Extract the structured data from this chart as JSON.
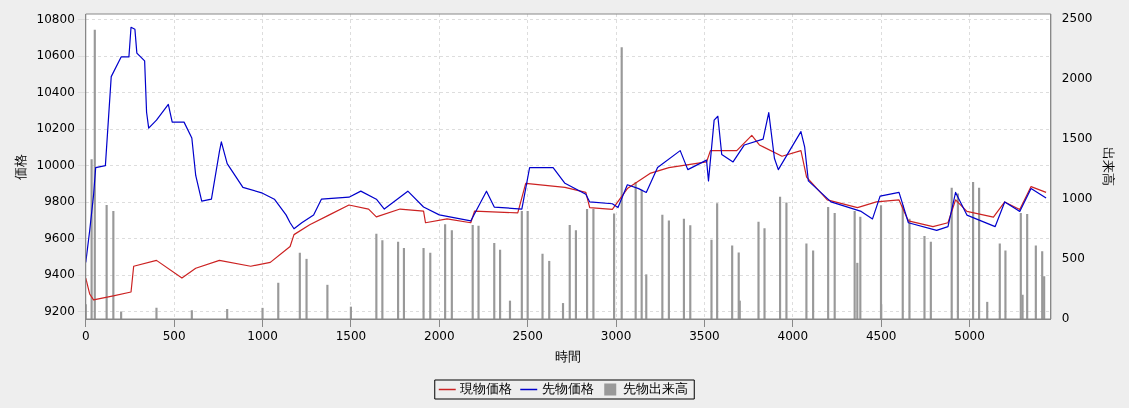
{
  "chart_data": {
    "type": "line",
    "xlabel": "時間",
    "ylabel": "価格",
    "y2label": "出来高",
    "xlim": [
      0,
      5460
    ],
    "xticks": [
      0,
      500,
      1000,
      1500,
      2000,
      2500,
      3000,
      3500,
      4000,
      4500,
      5000
    ],
    "ylim": [
      9160,
      10830
    ],
    "yticks": [
      9200,
      9400,
      9600,
      9800,
      10000,
      10200,
      10400,
      10600,
      10800
    ],
    "y2lim": [
      0,
      2540
    ],
    "y2ticks": [
      0,
      500,
      1000,
      1500,
      2000,
      2500
    ],
    "grid": true,
    "legend": "bottom",
    "series": [
      {
        "name": "現物価格",
        "color": "#cc2222",
        "x": [
          0,
          22,
          44,
          156,
          256,
          271,
          400,
          544,
          622,
          756,
          933,
          1044,
          1156,
          1178,
          1267,
          1378,
          1489,
          1600,
          1644,
          1778,
          1911,
          1922,
          2044,
          2178,
          2200,
          2444,
          2489,
          2711,
          2829,
          2851,
          2979,
          3064,
          3192,
          3299,
          3512,
          3534,
          3683,
          3768,
          3811,
          3939,
          4046,
          4078,
          4195,
          4366,
          4473,
          4601,
          4654,
          4793,
          4878,
          4921,
          4985,
          5135,
          5199,
          5284,
          5348,
          5433
        ],
        "values": [
          9384,
          9297,
          9265,
          9287,
          9308,
          9449,
          9481,
          9384,
          9438,
          9481,
          9449,
          9470,
          9557,
          9622,
          9676,
          9730,
          9784,
          9762,
          9719,
          9762,
          9751,
          9687,
          9708,
          9687,
          9751,
          9741,
          9903,
          9881,
          9853,
          9770,
          9760,
          9874,
          9957,
          9989,
          10020,
          10082,
          10082,
          10165,
          10113,
          10051,
          10082,
          9937,
          9812,
          9770,
          9801,
          9812,
          9697,
          9666,
          9687,
          9812,
          9749,
          9718,
          9801,
          9760,
          9885,
          9853
        ]
      },
      {
        "name": "先物価格",
        "color": "#0000cc",
        "x": [
          0,
          22,
          44,
          56,
          111,
          144,
          200,
          244,
          256,
          278,
          289,
          333,
          344,
          356,
          400,
          467,
          489,
          556,
          600,
          622,
          656,
          711,
          756,
          767,
          800,
          889,
          1000,
          1067,
          1133,
          1156,
          1178,
          1222,
          1289,
          1333,
          1489,
          1556,
          1644,
          1689,
          1822,
          1911,
          2000,
          2178,
          2267,
          2311,
          2467,
          2511,
          2644,
          2711,
          2829,
          2851,
          2979,
          3011,
          3064,
          3128,
          3171,
          3235,
          3363,
          3406,
          3512,
          3523,
          3555,
          3576,
          3598,
          3662,
          3726,
          3832,
          3864,
          3896,
          3918,
          4046,
          4067,
          4088,
          4216,
          4387,
          4451,
          4494,
          4601,
          4654,
          4814,
          4878,
          4921,
          4985,
          5145,
          5199,
          5284,
          5348,
          5433
        ],
        "values": [
          9470,
          9643,
          9838,
          9989,
          10000,
          10487,
          10595,
          10595,
          10757,
          10746,
          10616,
          10573,
          10292,
          10205,
          10249,
          10335,
          10238,
          10238,
          10151,
          9946,
          9805,
          9816,
          10076,
          10130,
          10011,
          9881,
          9849,
          9816,
          9730,
          9687,
          9654,
          9687,
          9730,
          9816,
          9827,
          9860,
          9816,
          9762,
          9860,
          9773,
          9730,
          9697,
          9860,
          9773,
          9762,
          9989,
          9989,
          9903,
          9843,
          9801,
          9791,
          9770,
          9895,
          9874,
          9853,
          9989,
          10082,
          9978,
          10030,
          9916,
          10249,
          10270,
          10061,
          10020,
          10113,
          10145,
          10290,
          10040,
          9978,
          10186,
          10103,
          9916,
          9801,
          9749,
          9708,
          9833,
          9853,
          9687,
          9645,
          9666,
          9853,
          9729,
          9666,
          9801,
          9749,
          9874,
          9822
        ]
      },
      {
        "name": "先物出来高",
        "type": "bar",
        "axis": "y2",
        "color": "#999999",
        "x": [
          0,
          33,
          51,
          118,
          156,
          200,
          400,
          600,
          800,
          1000,
          1089,
          1211,
          1249,
          1367,
          1500,
          1644,
          1678,
          1767,
          1800,
          1911,
          1949,
          2033,
          2071,
          2189,
          2222,
          2311,
          2344,
          2400,
          2467,
          2500,
          2584,
          2622,
          2700,
          2738,
          2773,
          2836,
          2872,
          2989,
          3026,
          3032,
          3111,
          3145,
          3171,
          3262,
          3299,
          3384,
          3420,
          3540,
          3572,
          3657,
          3694,
          3700,
          3806,
          3840,
          3928,
          3964,
          4077,
          4115,
          4200,
          4237,
          4350,
          4365,
          4382,
          4499,
          4500,
          4622,
          4660,
          4745,
          4781,
          4899,
          4934,
          5020,
          5054,
          5100,
          5171,
          5203,
          5290,
          5300,
          5326,
          5375,
          5411,
          5422
        ],
        "values": [
          120,
          1328,
          2407,
          946,
          896,
          60,
          90,
          70,
          80,
          90,
          299,
          548,
          498,
          282,
          100,
          707,
          654,
          641,
          588,
          588,
          548,
          787,
          737,
          780,
          774,
          631,
          574,
          150,
          896,
          896,
          541,
          481,
          130,
          780,
          737,
          913,
          913,
          875,
          null,
          2260,
          1138,
          1074,
          369,
          865,
          817,
          833,
          779,
          657,
          962,
          609,
          551,
          150,
          808,
          753,
          1016,
          968,
          625,
          567,
          929,
          881,
          897,
          465,
          849,
          945,
          120,
          945,
          833,
          689,
          641,
          1090,
          1042,
          1138,
          1090,
          140,
          625,
          567,
          881,
          200,
          872,
          609,
          561,
          353
        ]
      }
    ]
  }
}
